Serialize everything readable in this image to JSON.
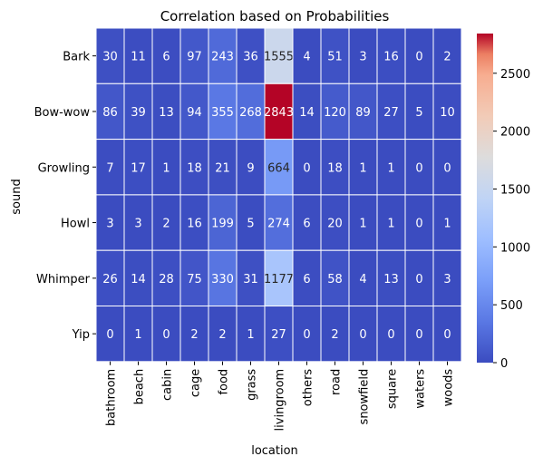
{
  "chart_data": {
    "type": "heatmap",
    "title": "Correlation based on Probabilities",
    "xlabel": "location",
    "ylabel": "sound",
    "x_categories": [
      "bathroom",
      "beach",
      "cabin",
      "cage",
      "food",
      "grass",
      "livingroom",
      "others",
      "road",
      "snowfield",
      "square",
      "waters",
      "woods"
    ],
    "y_categories": [
      "Bark",
      "Bow-wow",
      "Growling",
      "Howl",
      "Whimper",
      "Yip"
    ],
    "values": [
      [
        30,
        11,
        6,
        97,
        243,
        36,
        1555,
        4,
        51,
        3,
        16,
        0,
        2
      ],
      [
        86,
        39,
        13,
        94,
        355,
        268,
        2843,
        14,
        120,
        89,
        27,
        5,
        10
      ],
      [
        7,
        17,
        1,
        18,
        21,
        9,
        664,
        0,
        18,
        1,
        1,
        0,
        0
      ],
      [
        3,
        3,
        2,
        16,
        199,
        5,
        274,
        6,
        20,
        1,
        1,
        0,
        1
      ],
      [
        26,
        14,
        28,
        75,
        330,
        31,
        1177,
        6,
        58,
        4,
        13,
        0,
        3
      ],
      [
        0,
        1,
        0,
        2,
        2,
        1,
        27,
        0,
        2,
        0,
        0,
        0,
        0
      ]
    ],
    "colormap": "coolwarm",
    "vmin": 0,
    "vmax": 2843,
    "colorbar_ticks": [
      0,
      500,
      1000,
      1500,
      2000,
      2500
    ],
    "annotated": true,
    "cell_border_color": "#ffffff"
  }
}
